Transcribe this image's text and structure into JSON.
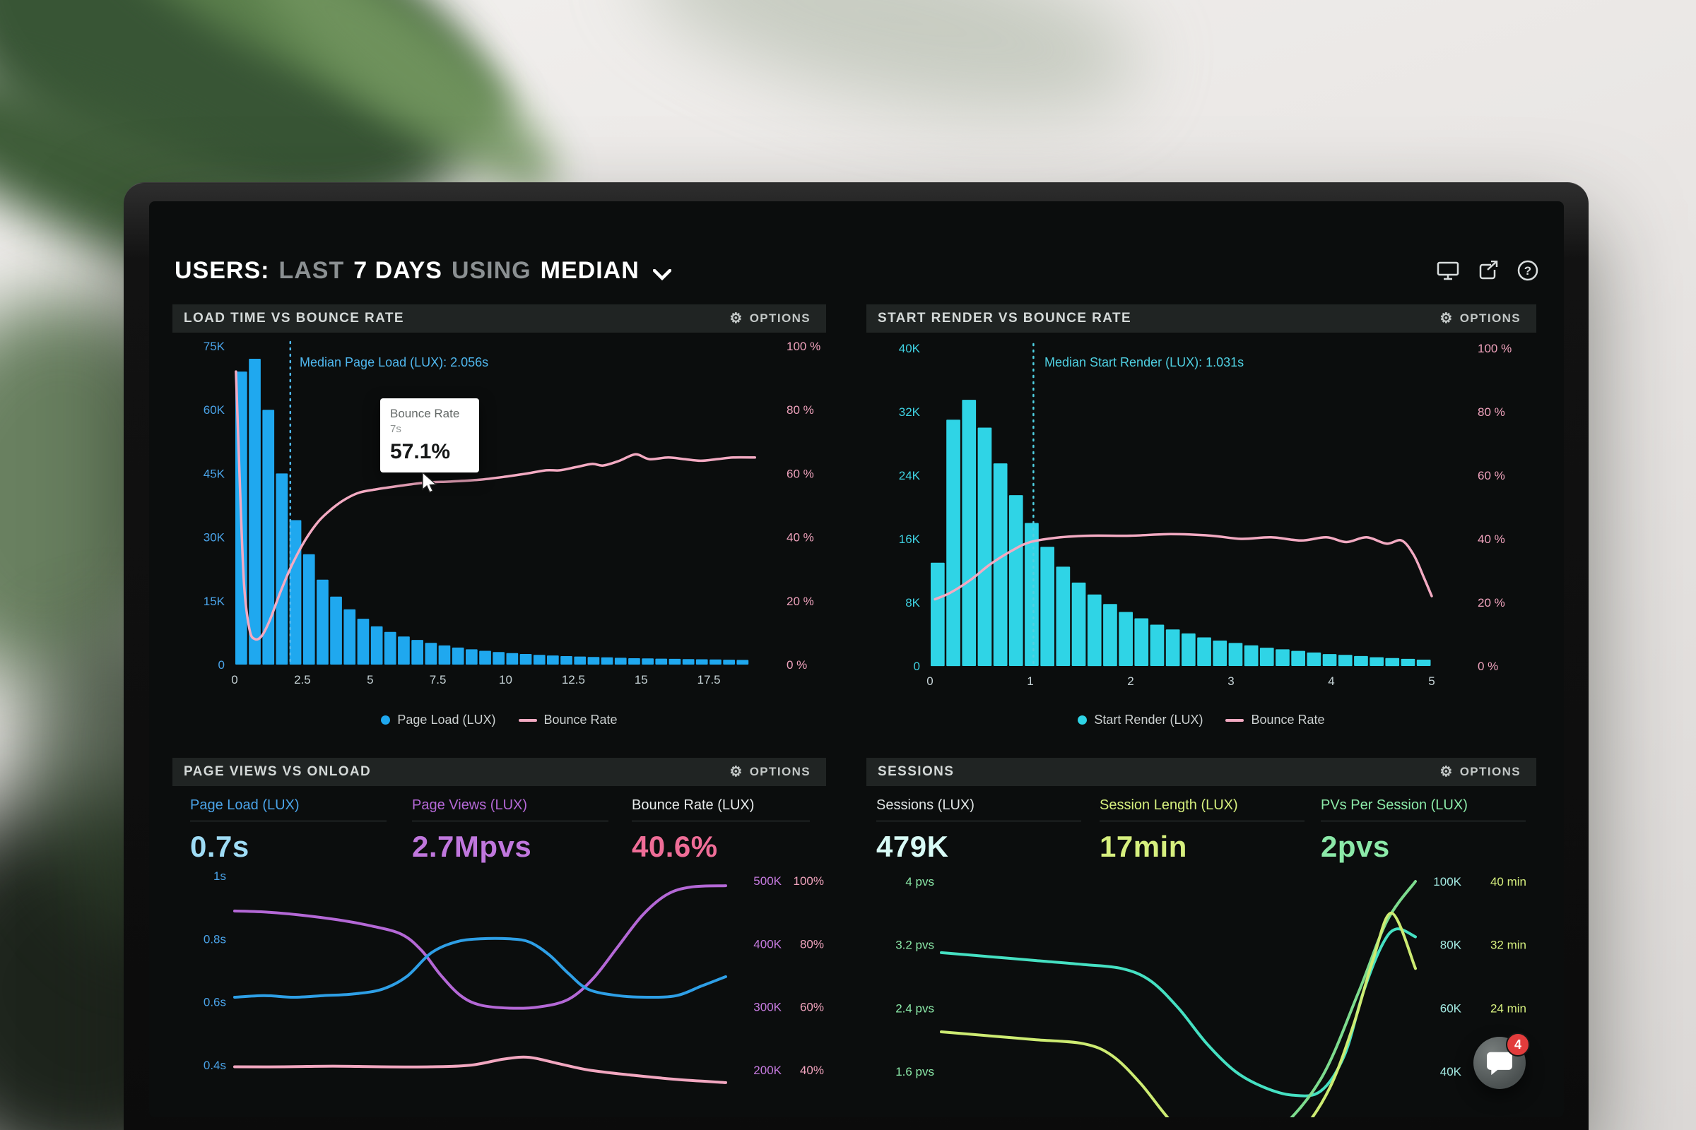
{
  "header": {
    "segments": [
      {
        "text": "USERS:"
      },
      {
        "text": "LAST"
      },
      {
        "text": "7 DAYS"
      },
      {
        "text": "USING"
      },
      {
        "text": "MEDIAN"
      }
    ]
  },
  "panels": {
    "load_time": {
      "title": "LOAD TIME VS BOUNCE RATE",
      "options_label": "OPTIONS",
      "median_label": "Median Page Load (LUX): 2.056s",
      "median_label_color": "#4fb7ee",
      "tooltip": {
        "title": "Bounce Rate",
        "sub": "7s",
        "value": "57.1%"
      },
      "legend": [
        {
          "label": "Page Load (LUX)"
        },
        {
          "label": "Bounce Rate"
        }
      ]
    },
    "start_render": {
      "title": "START RENDER VS BOUNCE RATE",
      "options_label": "OPTIONS",
      "median_label": "Median Start Render (LUX): 1.031s",
      "median_label_color": "#4fd0e2",
      "legend": [
        {
          "label": "Start Render (LUX)"
        },
        {
          "label": "Bounce Rate"
        }
      ]
    },
    "page_views": {
      "title": "PAGE VIEWS VS ONLOAD",
      "options_label": "OPTIONS",
      "stats": [
        {
          "label": "Page Load (LUX)",
          "label_color": "#4aa3e8",
          "value": "0.7s",
          "value_color": "#9fdcf5"
        },
        {
          "label": "Page Views (LUX)",
          "label_color": "#b468d6",
          "value": "2.7Mpvs",
          "value_color": "#c077dd"
        },
        {
          "label": "Bounce Rate (LUX)",
          "label_color": "#e8ecec",
          "value": "40.6%",
          "value_color": "#ef6d97"
        }
      ]
    },
    "sessions": {
      "title": "SESSIONS",
      "options_label": "OPTIONS",
      "stats": [
        {
          "label": "Sessions (LUX)",
          "label_color": "#dfe4e3",
          "value": "479K",
          "value_color": "#d8fbf6"
        },
        {
          "label": "Session Length (LUX)",
          "label_color": "#d6ef7e",
          "value": "17min",
          "value_color": "#d6ef7e"
        },
        {
          "label": "PVs Per Session (LUX)",
          "label_color": "#8be9a8",
          "value": "2pvs",
          "value_color": "#8be9a8"
        }
      ]
    }
  },
  "chat": {
    "badge": "4"
  },
  "chart_data": [
    {
      "type": "bar",
      "title": "LOAD TIME VS BOUNCE RATE",
      "bar_series": "Page Load (LUX)",
      "bar_color": "#1fa8ef",
      "x_max": 20,
      "bin_width": 0.5,
      "values_k": [
        69,
        72,
        60,
        45,
        34,
        26,
        20,
        16,
        13,
        10.8,
        9,
        7.7,
        6.6,
        5.8,
        5.1,
        4.5,
        4,
        3.6,
        3.25,
        2.95,
        2.7,
        2.5,
        2.3,
        2.15,
        2,
        1.9,
        1.8,
        1.7,
        1.6,
        1.5,
        1.45,
        1.4,
        1.35,
        1.3,
        1.25,
        1.2,
        1.15,
        1.1
      ],
      "y_left_max": 75,
      "y_left_ticks": [
        {
          "v": 75,
          "label": "75K"
        },
        {
          "v": 60,
          "label": "60K"
        },
        {
          "v": 45,
          "label": "45K"
        },
        {
          "v": 30,
          "label": "30K"
        },
        {
          "v": 15,
          "label": "15K"
        },
        {
          "v": 0,
          "label": "0"
        }
      ],
      "y_right_ticks": [
        {
          "p": 100,
          "label": "100 %"
        },
        {
          "p": 80,
          "label": "80 %"
        },
        {
          "p": 60,
          "label": "60 %"
        },
        {
          "p": 40,
          "label": "40 %"
        },
        {
          "p": 20,
          "label": "20 %"
        },
        {
          "p": 0,
          "label": "0 %"
        }
      ],
      "x_ticks": [
        {
          "v": 0,
          "label": "0"
        },
        {
          "v": 2.5,
          "label": "2.5"
        },
        {
          "v": 5,
          "label": "5"
        },
        {
          "v": 7.5,
          "label": "7.5"
        },
        {
          "v": 10,
          "label": "10"
        },
        {
          "v": 12.5,
          "label": "12.5"
        },
        {
          "v": 15,
          "label": "15"
        },
        {
          "v": 17.5,
          "label": "17.5"
        }
      ],
      "median": {
        "value": 2.056,
        "label": "Median Page Load (LUX): 2.056s"
      },
      "median_color": "#4fb7ee",
      "left_axis_color": "#4aa3e8",
      "right_axis_color": "#f0a3bd",
      "x_axis_color": "#c6d3d6",
      "hover": {
        "x_s": 7,
        "bounce_pct": 57.1
      },
      "line_series": {
        "name": "Bounce Rate",
        "color": "#f3aac2",
        "points": [
          [
            0.05,
            92
          ],
          [
            0.2,
            55
          ],
          [
            0.35,
            25
          ],
          [
            0.55,
            11
          ],
          [
            0.75,
            8
          ],
          [
            1,
            9
          ],
          [
            1.3,
            14
          ],
          [
            1.7,
            23
          ],
          [
            2.1,
            31
          ],
          [
            2.6,
            39
          ],
          [
            3.1,
            45
          ],
          [
            3.6,
            49
          ],
          [
            4.1,
            52
          ],
          [
            4.6,
            54
          ],
          [
            5.2,
            55
          ],
          [
            6,
            56
          ],
          [
            7,
            57.1
          ],
          [
            8,
            57.5
          ],
          [
            9,
            58
          ],
          [
            10,
            59
          ],
          [
            10.8,
            60
          ],
          [
            11.5,
            61
          ],
          [
            12,
            61
          ],
          [
            12.6,
            62
          ],
          [
            13.2,
            63
          ],
          [
            13.6,
            62.5
          ],
          [
            14.2,
            64
          ],
          [
            14.8,
            66
          ],
          [
            15.3,
            64.5
          ],
          [
            16,
            65
          ],
          [
            16.6,
            64.5
          ],
          [
            17.2,
            64
          ],
          [
            17.8,
            64.5
          ],
          [
            18.4,
            65
          ],
          [
            19.2,
            65
          ]
        ]
      }
    },
    {
      "type": "bar",
      "title": "START RENDER VS BOUNCE RATE",
      "bar_series": "Start Render (LUX)",
      "bar_color": "#2fd4e6",
      "x_max": 5,
      "bin_width": 0.15625,
      "values_k": [
        13,
        31,
        33.5,
        30,
        25.5,
        21.5,
        18,
        15,
        12.5,
        10.5,
        9,
        7.8,
        6.8,
        6,
        5.2,
        4.6,
        4.1,
        3.6,
        3.2,
        2.9,
        2.6,
        2.3,
        2.1,
        1.9,
        1.7,
        1.5,
        1.4,
        1.25,
        1.1,
        1,
        0.9,
        0.8
      ],
      "y_left_max": 40,
      "y_left_ticks": [
        {
          "v": 40,
          "label": "40K"
        },
        {
          "v": 32,
          "label": "32K"
        },
        {
          "v": 24,
          "label": "24K"
        },
        {
          "v": 16,
          "label": "16K"
        },
        {
          "v": 8,
          "label": "8K"
        },
        {
          "v": 0,
          "label": "0"
        }
      ],
      "y_right_ticks": [
        {
          "p": 100,
          "label": "100 %"
        },
        {
          "p": 80,
          "label": "80 %"
        },
        {
          "p": 60,
          "label": "60 %"
        },
        {
          "p": 40,
          "label": "40 %"
        },
        {
          "p": 20,
          "label": "20 %"
        },
        {
          "p": 0,
          "label": "0 %"
        }
      ],
      "x_ticks": [
        {
          "v": 0,
          "label": "0"
        },
        {
          "v": 1,
          "label": "1"
        },
        {
          "v": 2,
          "label": "2"
        },
        {
          "v": 3,
          "label": "3"
        },
        {
          "v": 4,
          "label": "4"
        },
        {
          "v": 5,
          "label": "5"
        }
      ],
      "median": {
        "value": 1.031,
        "label": "Median Start Render (LUX): 1.031s"
      },
      "median_color": "#4fd0e2",
      "left_axis_color": "#3fd2e2",
      "right_axis_color": "#f0a3bd",
      "x_axis_color": "#c6d3d6",
      "line_series": {
        "name": "Bounce Rate",
        "color": "#f3aac2",
        "points": [
          [
            0.05,
            21
          ],
          [
            0.2,
            23
          ],
          [
            0.4,
            27
          ],
          [
            0.6,
            32
          ],
          [
            0.8,
            36
          ],
          [
            1,
            39
          ],
          [
            1.3,
            40.5
          ],
          [
            1.6,
            41
          ],
          [
            2,
            41
          ],
          [
            2.4,
            41.5
          ],
          [
            2.8,
            41
          ],
          [
            3.1,
            40
          ],
          [
            3.4,
            40.5
          ],
          [
            3.7,
            39.5
          ],
          [
            3.95,
            40.5
          ],
          [
            4.15,
            39
          ],
          [
            4.35,
            40.5
          ],
          [
            4.55,
            38.5
          ],
          [
            4.7,
            39.5
          ],
          [
            4.82,
            35
          ],
          [
            4.92,
            28
          ],
          [
            5,
            22
          ]
        ]
      }
    },
    {
      "type": "line",
      "title": "PAGE VIEWS VS ONLOAD",
      "y_left_ticks": [
        {
          "v": 1,
          "label": "1s"
        },
        {
          "v": 0.8,
          "label": "0.8s"
        },
        {
          "v": 0.6,
          "label": "0.6s"
        },
        {
          "v": 0.4,
          "label": "0.4s"
        }
      ],
      "y_right_ticks": [
        {
          "v": 500,
          "c1": "500K",
          "c2": "100%"
        },
        {
          "v": 400,
          "c1": "400K",
          "c2": "80%"
        },
        {
          "v": 300,
          "c1": "300K",
          "c2": "60%"
        },
        {
          "v": 200,
          "c1": "200K",
          "c2": "40%"
        }
      ],
      "left_axis_color": "#4aa3e8",
      "right_axis_color": "#c77be0",
      "right_axis_color2": "#f0a3bd",
      "series": [
        {
          "name": "Page Views (LUX)",
          "axis": "k",
          "color": "#b468d6",
          "points": [
            [
              0,
              452
            ],
            [
              0.07,
              450
            ],
            [
              0.14,
              445
            ],
            [
              0.21,
              438
            ],
            [
              0.28,
              428
            ],
            [
              0.34,
              415
            ],
            [
              0.38,
              390
            ],
            [
              0.42,
              350
            ],
            [
              0.46,
              318
            ],
            [
              0.5,
              303
            ],
            [
              0.56,
              298
            ],
            [
              0.62,
              300
            ],
            [
              0.68,
              312
            ],
            [
              0.73,
              345
            ],
            [
              0.78,
              395
            ],
            [
              0.83,
              445
            ],
            [
              0.88,
              478
            ],
            [
              0.93,
              490
            ],
            [
              1,
              492
            ]
          ]
        },
        {
          "name": "Page Load (LUX)",
          "axis": "sec",
          "color": "#2e9fe6",
          "points": [
            [
              0,
              0.615
            ],
            [
              0.06,
              0.62
            ],
            [
              0.12,
              0.615
            ],
            [
              0.18,
              0.62
            ],
            [
              0.24,
              0.625
            ],
            [
              0.3,
              0.64
            ],
            [
              0.35,
              0.68
            ],
            [
              0.4,
              0.755
            ],
            [
              0.45,
              0.79
            ],
            [
              0.5,
              0.8
            ],
            [
              0.56,
              0.8
            ],
            [
              0.6,
              0.79
            ],
            [
              0.64,
              0.75
            ],
            [
              0.68,
              0.69
            ],
            [
              0.72,
              0.64
            ],
            [
              0.78,
              0.62
            ],
            [
              0.84,
              0.615
            ],
            [
              0.9,
              0.62
            ],
            [
              0.95,
              0.65
            ],
            [
              1,
              0.68
            ]
          ]
        },
        {
          "name": "Bounce Rate",
          "axis": "pct",
          "color": "#f2a7c0",
          "points": [
            [
              0,
              41
            ],
            [
              0.1,
              41
            ],
            [
              0.2,
              41.2
            ],
            [
              0.3,
              41
            ],
            [
              0.4,
              41
            ],
            [
              0.48,
              41.5
            ],
            [
              0.55,
              43.5
            ],
            [
              0.6,
              44
            ],
            [
              0.66,
              42
            ],
            [
              0.72,
              40
            ],
            [
              0.8,
              38.5
            ],
            [
              0.9,
              37
            ],
            [
              1,
              36
            ]
          ]
        }
      ]
    },
    {
      "type": "line",
      "title": "SESSIONS",
      "y_left_ticks": [
        {
          "v": 4,
          "label": "4 pvs"
        },
        {
          "v": 3.2,
          "label": "3.2 pvs"
        },
        {
          "v": 2.4,
          "label": "2.4 pvs"
        },
        {
          "v": 1.6,
          "label": "1.6 pvs"
        }
      ],
      "y_right_ticks": [
        {
          "v": 100,
          "c1": "100K",
          "c2": "40 min"
        },
        {
          "v": 80,
          "c1": "80K",
          "c2": "32 min"
        },
        {
          "v": 60,
          "c1": "60K",
          "c2": "24 min"
        },
        {
          "v": 40,
          "c1": "40K",
          "c2": ""
        }
      ],
      "left_axis_color": "#8be9a8",
      "right_axis_color": "#a5ece4",
      "right_axis_color2": "#d6ef7e",
      "series": [
        {
          "name": "Sessions (LUX)",
          "axis": "pvs",
          "color": "#45e0c2",
          "points": [
            [
              0,
              3.1
            ],
            [
              0.1,
              3.05
            ],
            [
              0.2,
              3
            ],
            [
              0.3,
              2.95
            ],
            [
              0.38,
              2.9
            ],
            [
              0.44,
              2.75
            ],
            [
              0.5,
              2.4
            ],
            [
              0.56,
              1.95
            ],
            [
              0.62,
              1.6
            ],
            [
              0.68,
              1.4
            ],
            [
              0.74,
              1.3
            ],
            [
              0.8,
              1.35
            ],
            [
              0.85,
              1.8
            ],
            [
              0.89,
              2.6
            ],
            [
              0.93,
              3.2
            ],
            [
              0.96,
              3.4
            ],
            [
              1,
              3.3
            ]
          ]
        },
        {
          "name": "PVs Per Session (LUX)",
          "axis": "pvs",
          "color": "#7ddc8e",
          "points": [
            [
              0.5,
              0.4
            ],
            [
              0.6,
              0.5
            ],
            [
              0.7,
              0.8
            ],
            [
              0.8,
              1.5
            ],
            [
              0.88,
              2.6
            ],
            [
              0.94,
              3.5
            ],
            [
              1,
              4
            ]
          ]
        },
        {
          "name": "Session Length (LUX)",
          "axis": "pvs",
          "color": "#cdeb72",
          "points": [
            [
              0,
              2.1
            ],
            [
              0.1,
              2.05
            ],
            [
              0.2,
              2
            ],
            [
              0.3,
              1.95
            ],
            [
              0.36,
              1.8
            ],
            [
              0.42,
              1.45
            ],
            [
              0.48,
              1
            ],
            [
              0.54,
              0.65
            ],
            [
              0.62,
              0.5
            ],
            [
              0.7,
              0.6
            ],
            [
              0.76,
              0.85
            ],
            [
              0.82,
              1.4
            ],
            [
              0.87,
              2.2
            ],
            [
              0.91,
              3
            ],
            [
              0.95,
              3.6
            ],
            [
              1,
              2.9
            ]
          ]
        }
      ]
    }
  ]
}
